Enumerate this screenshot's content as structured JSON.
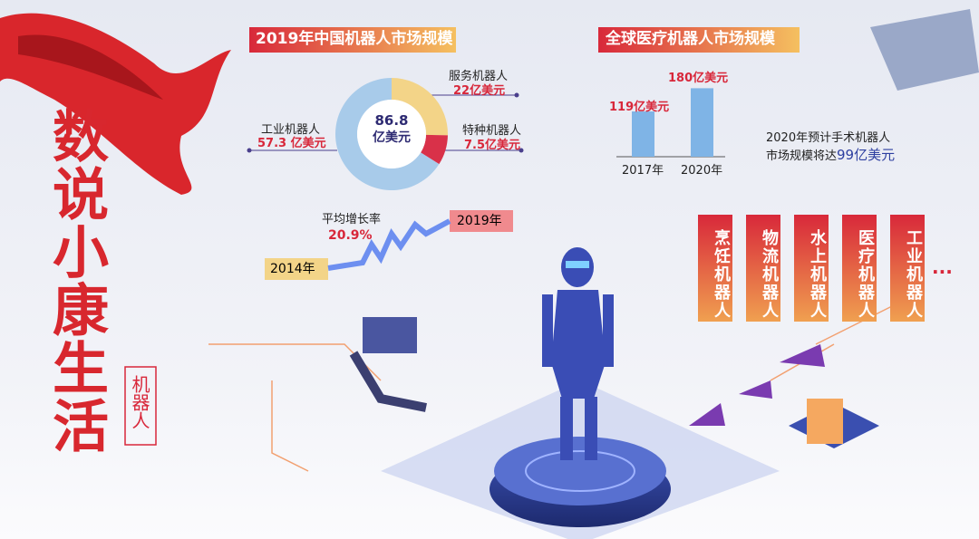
{
  "poster": {
    "title": "数说小康生活",
    "tag": "机器人"
  },
  "chart_data": [
    {
      "type": "pie",
      "title": "2019年中国机器人市场规模",
      "center_value": 86.8,
      "center_unit": "亿美元",
      "categories": [
        "服务机器人",
        "特种机器人",
        "工业机器人"
      ],
      "values": [
        22,
        7.5,
        57.3
      ],
      "value_labels": [
        "22亿美元",
        "7.5亿美元",
        "57.3 亿美元"
      ],
      "colors": [
        "#f3d488",
        "#d93149",
        "#a8cbea"
      ]
    },
    {
      "type": "bar",
      "title": "全球医疗机器人市场规模",
      "categories": [
        "2017年",
        "2020年"
      ],
      "values": [
        119,
        180
      ],
      "value_labels": [
        "119亿美元",
        "180亿美元"
      ],
      "color": "#7fb4e6"
    }
  ],
  "growth": {
    "label": "平均增长率",
    "value": "20.9%",
    "start": "2014年",
    "end": "2019年"
  },
  "note": {
    "line1": "2020年预计手术机器人",
    "line2": "市场规模将达",
    "highlight": "99亿美元"
  },
  "robot_types": [
    "烹饪机器人",
    "物流机器人",
    "水上机器人",
    "医疗机器人",
    "工业机器人"
  ],
  "more": "..."
}
